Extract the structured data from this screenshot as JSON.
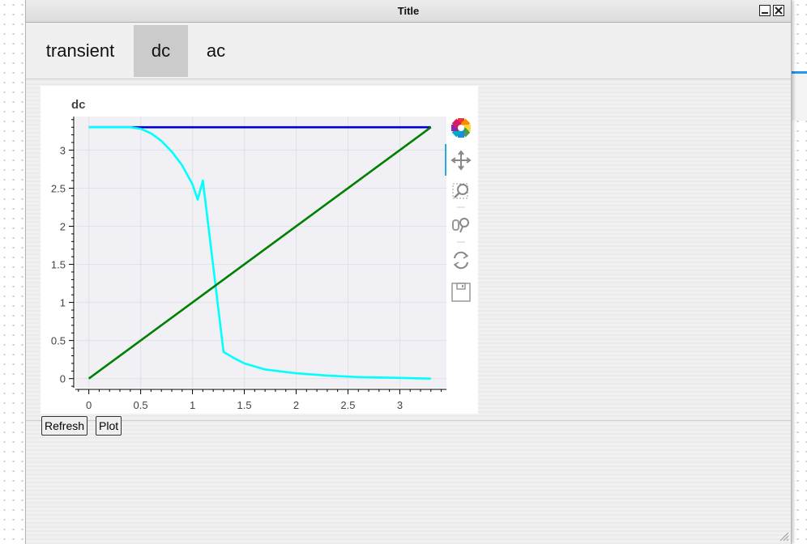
{
  "window": {
    "title": "Title"
  },
  "tabs": [
    {
      "label": "transient",
      "active": false
    },
    {
      "label": "dc",
      "active": true
    },
    {
      "label": "ac",
      "active": false
    }
  ],
  "buttons": {
    "refresh": "Refresh",
    "plot": "Plot"
  },
  "toolbar": [
    {
      "name": "bokeh-logo-icon"
    },
    {
      "name": "pan-icon",
      "active": true
    },
    {
      "name": "box-zoom-icon"
    },
    {
      "name": "wheel-zoom-icon"
    },
    {
      "name": "reset-icon"
    },
    {
      "name": "save-icon"
    }
  ],
  "colors": {
    "plot_bg": "#f0f0f5",
    "grid": "#e1e1e8"
  },
  "chart_data": {
    "type": "line",
    "title": "dc",
    "xlabel": "",
    "ylabel": "",
    "xlim": [
      -0.13,
      3.45
    ],
    "ylim": [
      -0.12,
      3.44
    ],
    "grid": true,
    "x_ticks": [
      0,
      0.5,
      1,
      1.5,
      2,
      2.5,
      3
    ],
    "y_ticks": [
      0,
      0.5,
      1,
      1.5,
      2,
      2.5,
      3
    ],
    "x_tick_labels": [
      "0",
      "0.5",
      "1",
      "1.5",
      "2",
      "2.5",
      "3"
    ],
    "y_tick_labels": [
      "0",
      "0.5",
      "1",
      "1.5",
      "2",
      "2.5",
      "3"
    ],
    "series": [
      {
        "color": "#0000cd",
        "x": [
          0,
          3.3
        ],
        "y": [
          3.3,
          3.3
        ]
      },
      {
        "color": "#00ffff",
        "x": [
          0,
          0.4,
          0.5,
          0.6,
          0.7,
          0.8,
          0.9,
          1.0,
          1.05,
          1.1,
          1.3,
          1.4,
          1.5,
          1.7,
          2.0,
          2.3,
          2.6,
          3.0,
          3.3
        ],
        "y": [
          3.3,
          3.3,
          3.28,
          3.22,
          3.12,
          2.98,
          2.8,
          2.55,
          2.35,
          2.6,
          0.35,
          0.27,
          0.2,
          0.12,
          0.07,
          0.04,
          0.02,
          0.01,
          0.0
        ]
      },
      {
        "color": "#008000",
        "x": [
          0,
          3.3
        ],
        "y": [
          0,
          3.3
        ]
      }
    ]
  }
}
